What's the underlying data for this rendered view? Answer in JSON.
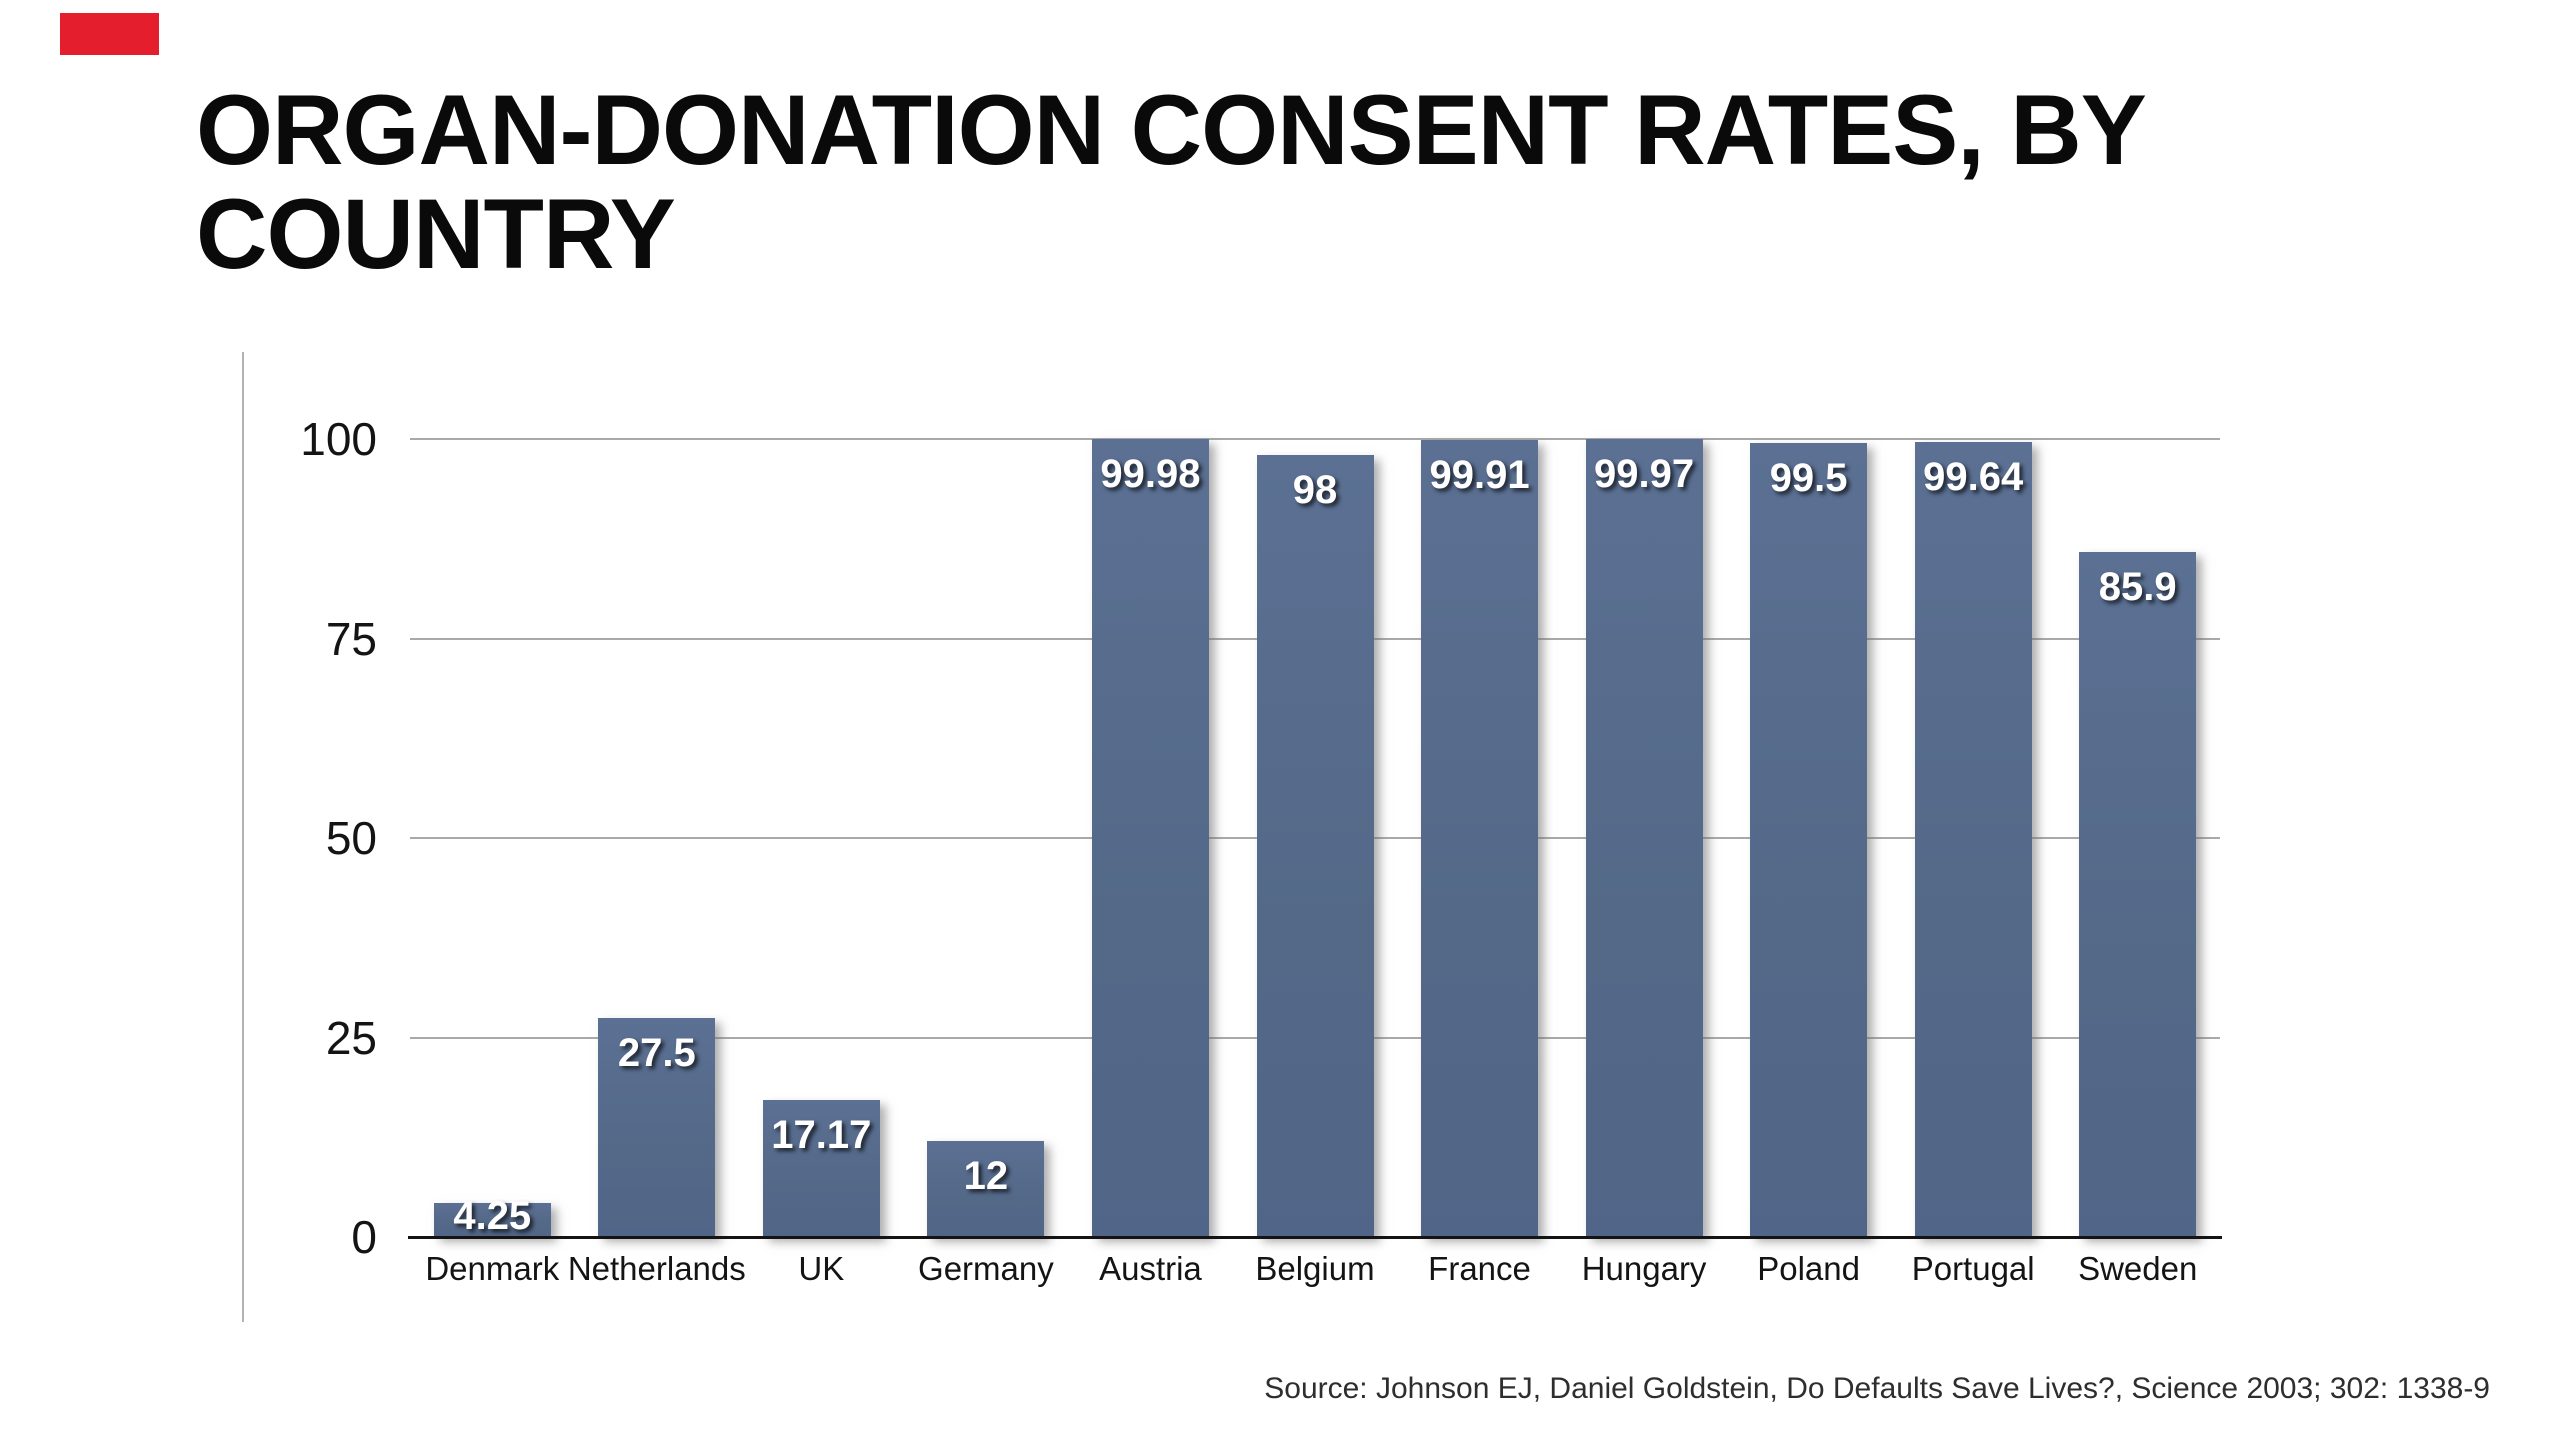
{
  "slide": {
    "title": "ORGAN-DONATION CONSENT RATES, BY COUNTRY",
    "title_lines": [
      "ORGAN-DONATION CONSENT RATES, BY",
      "COUNTRY"
    ],
    "source": "Source: Johnson EJ, Daniel Goldstein, Do Defaults Save Lives?, Science 2003; 302: 1338-9",
    "accent_color": "#e41e2d"
  },
  "chart_data": {
    "type": "bar",
    "title": "ORGAN-DONATION CONSENT RATES, BY COUNTRY",
    "categories": [
      "Denmark",
      "Netherlands",
      "UK",
      "Germany",
      "Austria",
      "Belgium",
      "France",
      "Hungary",
      "Poland",
      "Portugal",
      "Sweden"
    ],
    "values": [
      4.25,
      27.5,
      17.17,
      12,
      99.98,
      98,
      99.91,
      99.97,
      99.5,
      99.64,
      85.9
    ],
    "value_labels": [
      "4.25",
      "27.5",
      "17.17",
      "12",
      "99.98",
      "98",
      "99.91",
      "99.97",
      "99.5",
      "99.64",
      "85.9"
    ],
    "xlabel": "",
    "ylabel": "",
    "ylim": [
      0,
      100
    ],
    "yticks": [
      0,
      25,
      50,
      75,
      100
    ],
    "grid": true,
    "legend": false,
    "bar_color": "#566b8e",
    "gridline_color": "#a9a9a9",
    "axis_color": "#141414",
    "value_label_color": "#ffffff",
    "source": "Source: Johnson EJ, Daniel Goldstein, Do Defaults Save Lives?, Science 2003; 302: 1338-9"
  }
}
